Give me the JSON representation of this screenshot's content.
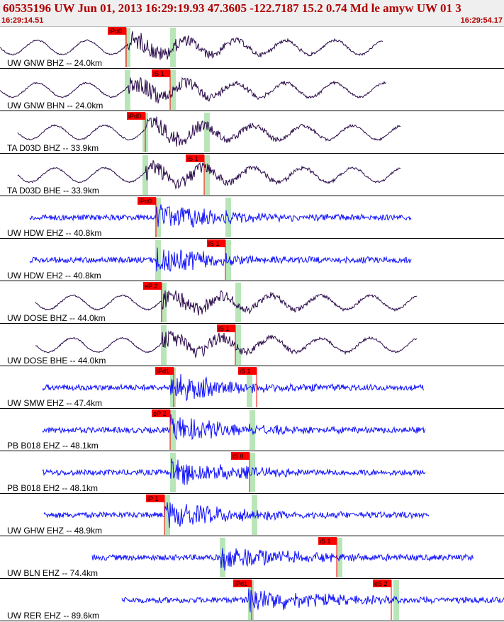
{
  "header": {
    "title": "60535196 UW Jun 01, 2013 16:29:19.93   47.3605 -122.7187 15.2 0.74 Md le amyw UW 01   3",
    "time_start": "16:29:14.51",
    "time_end": "16:29:54.17"
  },
  "colors": {
    "short_period_trace": "#1010ff",
    "broadband_trace": "#2a0a4a",
    "pick_flag": "#ff0000",
    "pick_window": "#b8e6b8",
    "separator": "#000000"
  },
  "traces": [
    {
      "label": "UW GNW BHZ -- 24.0km",
      "kind": "broadband",
      "picks": [
        {
          "text": "iPd0"
        }
      ]
    },
    {
      "label": "UW GNW BHN -- 24.0km",
      "kind": "broadband",
      "picks": [
        {
          "text": "iS 1"
        }
      ]
    },
    {
      "label": "TA D03D BHZ -- 33.9km",
      "kind": "broadband",
      "picks": [
        {
          "text": "iPd0"
        }
      ]
    },
    {
      "label": "TA D03D BHE -- 33.9km",
      "kind": "broadband",
      "picks": [
        {
          "text": "iS 1"
        }
      ]
    },
    {
      "label": "UW HDW EHZ -- 40.8km",
      "kind": "short",
      "picks": [
        {
          "text": "iPd0"
        }
      ]
    },
    {
      "label": "UW HDW EH2 -- 40.8km",
      "kind": "short",
      "picks": [
        {
          "text": "iS 1"
        }
      ]
    },
    {
      "label": "UW DOSE BHZ -- 44.0km",
      "kind": "broadband",
      "picks": [
        {
          "text": "eP 2"
        }
      ]
    },
    {
      "label": "UW DOSE BHE -- 44.0km",
      "kind": "broadband",
      "picks": [
        {
          "text": "iS 1"
        }
      ]
    },
    {
      "label": "UW SMW EHZ -- 47.4km",
      "kind": "short",
      "picks": [
        {
          "text": "iPd1"
        },
        {
          "text": "iS 1"
        }
      ]
    },
    {
      "label": "PB B018 EHZ -- 48.1km",
      "kind": "short",
      "picks": [
        {
          "text": "eP 2"
        }
      ]
    },
    {
      "label": "PB B018 EH2 -- 48.1km",
      "kind": "short",
      "picks": [
        {
          "text": "iS 0"
        }
      ]
    },
    {
      "label": "UW GHW EHZ -- 48.9km",
      "kind": "short",
      "picks": [
        {
          "text": "iP 1"
        }
      ]
    },
    {
      "label": "UW BLN EHZ -- 74.4km",
      "kind": "short",
      "picks": [
        {
          "text": "iS 1"
        }
      ]
    },
    {
      "label": "UW RER EHZ -- 89.6km",
      "kind": "short",
      "picks": [
        {
          "text": "iPd1"
        },
        {
          "text": "eS 2"
        }
      ]
    }
  ]
}
